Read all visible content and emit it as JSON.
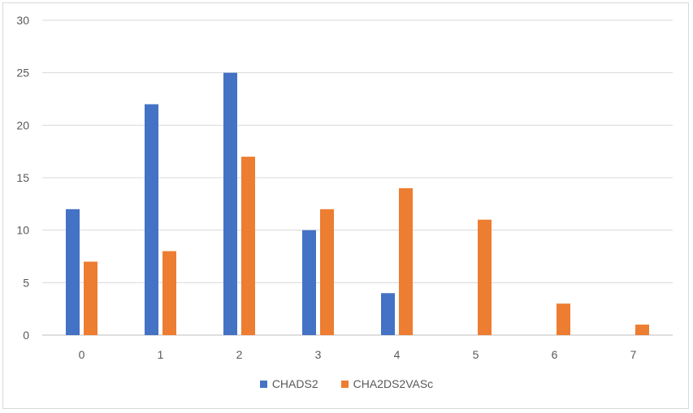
{
  "chart_data": {
    "type": "bar",
    "categories": [
      "0",
      "1",
      "2",
      "3",
      "4",
      "5",
      "6",
      "7"
    ],
    "series": [
      {
        "name": "CHADS2",
        "color": "#4472C4",
        "values": [
          12,
          22,
          25,
          10,
          4,
          0,
          0,
          0
        ]
      },
      {
        "name": "CHA2DS2VASc",
        "color": "#ED7D31",
        "values": [
          7,
          8,
          17,
          12,
          14,
          11,
          3,
          1
        ]
      }
    ],
    "ylim": [
      0,
      30
    ],
    "yticks": [
      "0",
      "5",
      "10",
      "15",
      "20",
      "25",
      "30"
    ],
    "grid": true,
    "legend_position": "bottom"
  }
}
